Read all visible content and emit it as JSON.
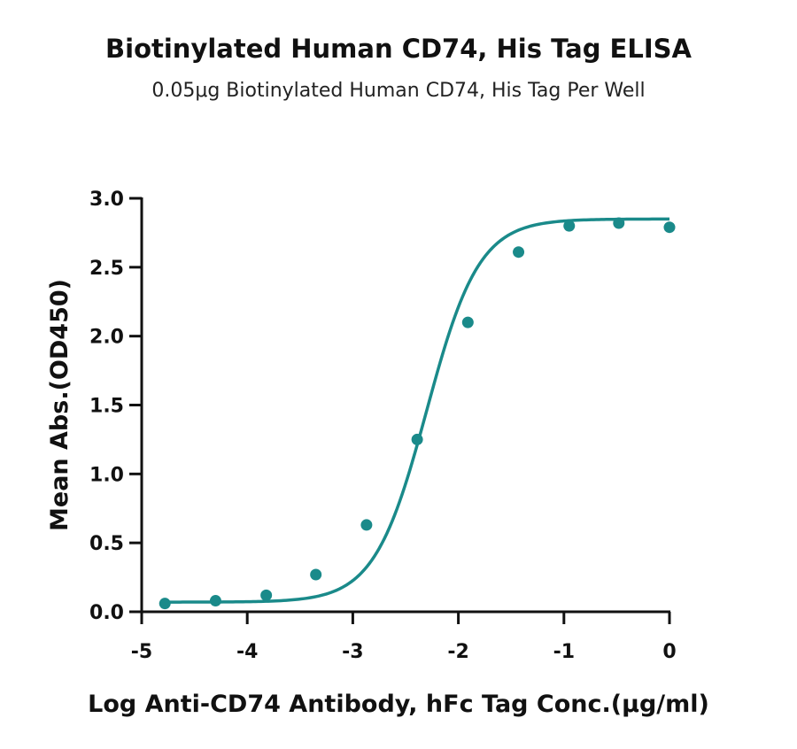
{
  "chart_data": {
    "type": "scatter",
    "title": "Biotinylated Human CD74, His Tag ELISA",
    "subtitle": "0.05μg Biotinylated  Human CD74, His Tag Per Well",
    "xlabel": "Log Anti-CD74 Antibody, hFc Tag Conc.(μg/ml)",
    "ylabel": "Mean Abs.(OD450)",
    "xlim": [
      -5,
      0
    ],
    "ylim": [
      0,
      3.0
    ],
    "x_ticks": [
      "-5",
      "-4",
      "-3",
      "-2",
      "-1",
      "0"
    ],
    "y_ticks": [
      "0.0",
      "0.5",
      "1.0",
      "1.5",
      "2.0",
      "2.5",
      "3.0"
    ],
    "grid": false,
    "series_color": "#1a8a8a",
    "points": {
      "x": [
        -4.78,
        -4.3,
        -3.82,
        -3.35,
        -2.87,
        -2.39,
        -1.91,
        -1.43,
        -0.95,
        -0.48,
        0.0
      ],
      "y": [
        0.06,
        0.08,
        0.12,
        0.27,
        0.63,
        1.25,
        2.1,
        2.61,
        2.8,
        2.82,
        2.79
      ]
    },
    "fit": {
      "model": "4PL",
      "bottom": 0.07,
      "top": 2.85,
      "log_ec50": -2.3,
      "hill": 1.75
    }
  }
}
